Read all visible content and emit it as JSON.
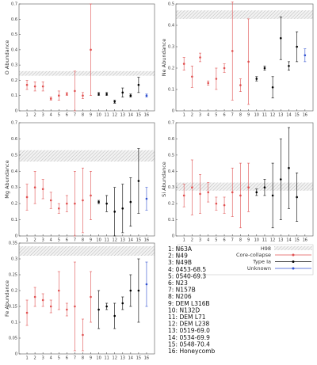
{
  "chart_data": [
    {
      "type": "errorbar",
      "ylabel": "O Abundance",
      "xlim": [
        0,
        17
      ],
      "xticks": [
        1,
        2,
        3,
        4,
        5,
        6,
        7,
        8,
        9,
        10,
        11,
        12,
        13,
        14,
        15,
        16
      ],
      "ylim": [
        0,
        0.7
      ],
      "yticks": [
        0,
        0.1,
        0.2,
        0.3,
        0.4,
        0.5,
        0.6,
        0.7
      ],
      "band": [
        0.23,
        0.26
      ],
      "series": [
        {
          "name": "Core-collapse",
          "color": "#e05050",
          "x": [
            1,
            2,
            3,
            4,
            5,
            6,
            7,
            8,
            9
          ],
          "values": [
            0.17,
            0.16,
            0.16,
            0.08,
            0.1,
            0.11,
            0.13,
            0.1,
            0.4
          ],
          "errors": [
            0.03,
            0.03,
            0.03,
            0.01,
            0.03,
            0.01,
            0.13,
            0.02,
            0.3
          ]
        },
        {
          "name": "Type Ia",
          "color": "#000000",
          "x": [
            10,
            11,
            12,
            13,
            14,
            15
          ],
          "values": [
            0.11,
            0.11,
            0.06,
            0.12,
            0.1,
            0.17
          ],
          "errors": [
            0.01,
            0.01,
            0.01,
            0.03,
            0.01,
            0.05
          ]
        },
        {
          "name": "Unknown",
          "color": "#3050d0",
          "x": [
            16
          ],
          "values": [
            0.1
          ],
          "errors": [
            0.01
          ]
        }
      ]
    },
    {
      "type": "errorbar",
      "ylabel": "Ne Abundance",
      "xlim": [
        0,
        17
      ],
      "xticks": [
        1,
        2,
        3,
        4,
        5,
        6,
        7,
        8,
        9,
        10,
        11,
        12,
        13,
        14,
        15,
        16
      ],
      "ylim": [
        0,
        0.5
      ],
      "yticks": [
        0,
        0.1,
        0.2,
        0.3,
        0.4,
        0.5
      ],
      "band": [
        0.43,
        0.47
      ],
      "series": [
        {
          "name": "Core-collapse",
          "color": "#e05050",
          "x": [
            1,
            2,
            3,
            4,
            5,
            6,
            7,
            8,
            9
          ],
          "values": [
            0.22,
            0.16,
            0.25,
            0.13,
            0.15,
            0.2,
            0.28,
            0.12,
            0.23
          ],
          "errors": [
            0.03,
            0.05,
            0.02,
            0.01,
            0.05,
            0.02,
            0.23,
            0.03,
            0.2
          ]
        },
        {
          "name": "Type Ia",
          "color": "#000000",
          "x": [
            10,
            11,
            12,
            13,
            14,
            15
          ],
          "values": [
            0.15,
            0.2,
            0.11,
            0.34,
            0.21,
            0.3
          ],
          "errors": [
            0.01,
            0.01,
            0.05,
            0.1,
            0.02,
            0.07
          ]
        },
        {
          "name": "Unknown",
          "color": "#3050d0",
          "x": [
            16
          ],
          "values": [
            0.26
          ],
          "errors": [
            0.03
          ]
        }
      ]
    },
    {
      "type": "errorbar",
      "ylabel": "Mg Abundance",
      "xlim": [
        0,
        17
      ],
      "xticks": [
        1,
        2,
        3,
        4,
        5,
        6,
        7,
        8,
        9,
        10,
        11,
        12,
        13,
        14,
        15,
        16
      ],
      "ylim": [
        0,
        0.7
      ],
      "yticks": [
        0,
        0.1,
        0.2,
        0.3,
        0.4,
        0.5,
        0.6,
        0.7
      ],
      "band": [
        0.46,
        0.53
      ],
      "series": [
        {
          "name": "Core-collapse",
          "color": "#e05050",
          "x": [
            1,
            2,
            3,
            4,
            5,
            6,
            7,
            8,
            9
          ],
          "values": [
            0.24,
            0.3,
            0.29,
            0.22,
            0.17,
            0.2,
            0.2,
            0.22,
            0.25
          ],
          "errors": [
            0.08,
            0.1,
            0.06,
            0.05,
            0.03,
            0.05,
            0.2,
            0.2,
            0.15
          ]
        },
        {
          "name": "Type Ia",
          "color": "#000000",
          "x": [
            10,
            11,
            12,
            13,
            14,
            15
          ],
          "values": [
            0.21,
            0.2,
            0.15,
            0.17,
            0.21,
            0.34
          ],
          "errors": [
            0.01,
            0.05,
            0.15,
            0.15,
            0.15,
            0.2
          ]
        },
        {
          "name": "Unknown",
          "color": "#3050d0",
          "x": [
            16
          ],
          "values": [
            0.23
          ],
          "errors": [
            0.07
          ]
        }
      ]
    },
    {
      "type": "errorbar",
      "ylabel": "Si Abundance",
      "xlim": [
        0,
        17
      ],
      "xticks": [
        1,
        2,
        3,
        4,
        5,
        6,
        7,
        8,
        9,
        10,
        11,
        12,
        13,
        14,
        15,
        16
      ],
      "ylim": [
        0,
        0.7
      ],
      "yticks": [
        0,
        0.1,
        0.2,
        0.3,
        0.4,
        0.5,
        0.6,
        0.7
      ],
      "band": [
        0.28,
        0.33
      ],
      "series": [
        {
          "name": "Core-collapse",
          "color": "#e05050",
          "x": [
            1,
            2,
            3,
            4,
            5,
            6,
            7,
            8,
            9
          ],
          "values": [
            0.25,
            0.3,
            0.26,
            0.27,
            0.2,
            0.19,
            0.27,
            0.25,
            0.3
          ],
          "errors": [
            0.07,
            0.17,
            0.12,
            0.06,
            0.04,
            0.05,
            0.15,
            0.2,
            0.15
          ]
        },
        {
          "name": "Type Ia",
          "color": "#000000",
          "x": [
            10,
            11,
            12,
            13,
            14,
            15
          ],
          "values": [
            0.27,
            0.3,
            0.25,
            0.35,
            0.42,
            0.24
          ],
          "errors": [
            0.02,
            0.05,
            0.2,
            0.25,
            0.25,
            0.15
          ]
        },
        {
          "name": "Unknown",
          "color": "#3050d0",
          "x": [],
          "values": [],
          "errors": []
        }
      ]
    },
    {
      "type": "errorbar",
      "ylabel": "Fe Abundance",
      "xlim": [
        0,
        17
      ],
      "xticks": [
        1,
        2,
        3,
        4,
        5,
        6,
        7,
        8,
        9,
        10,
        11,
        12,
        13,
        14,
        15,
        16
      ],
      "ylim": [
        0,
        0.35
      ],
      "yticks": [
        0,
        0.05,
        0.1,
        0.15,
        0.2,
        0.25,
        0.3,
        0.35
      ],
      "band": [
        0.31,
        0.34
      ],
      "series": [
        {
          "name": "Core-collapse",
          "color": "#e05050",
          "x": [
            1,
            2,
            3,
            4,
            5,
            6,
            7,
            8,
            9
          ],
          "values": [
            0.13,
            0.18,
            0.17,
            0.15,
            0.2,
            0.14,
            0.15,
            0.06,
            0.18
          ],
          "errors": [
            0.04,
            0.03,
            0.02,
            0.02,
            0.06,
            0.02,
            0.14,
            0.05,
            0.08
          ]
        },
        {
          "name": "Type Ia",
          "color": "#000000",
          "x": [
            10,
            11,
            12,
            13,
            14,
            15
          ],
          "values": [
            0.14,
            0.15,
            0.12,
            0.16,
            0.2,
            0.2
          ],
          "errors": [
            0.06,
            0.01,
            0.04,
            0.02,
            0.05,
            0.1
          ]
        },
        {
          "name": "Unknown",
          "color": "#3050d0",
          "x": [
            16
          ],
          "values": [
            0.22
          ],
          "errors": [
            0.07
          ]
        }
      ]
    }
  ],
  "band_label": "H98",
  "snr_list": [
    "1: N63A",
    "2: N49",
    "3: N49B",
    "4: 0453-68.5",
    "5: 0540-69.3",
    "6: N23",
    "7: N157B",
    "8: N206",
    "9: DEM L316B",
    "10: N132D",
    "11: DEM L71",
    "12: DEM L238",
    "13: 0519-69.0",
    "14: 0534-69.9",
    "15: 0548-70.4",
    "16: Honeycomb"
  ]
}
